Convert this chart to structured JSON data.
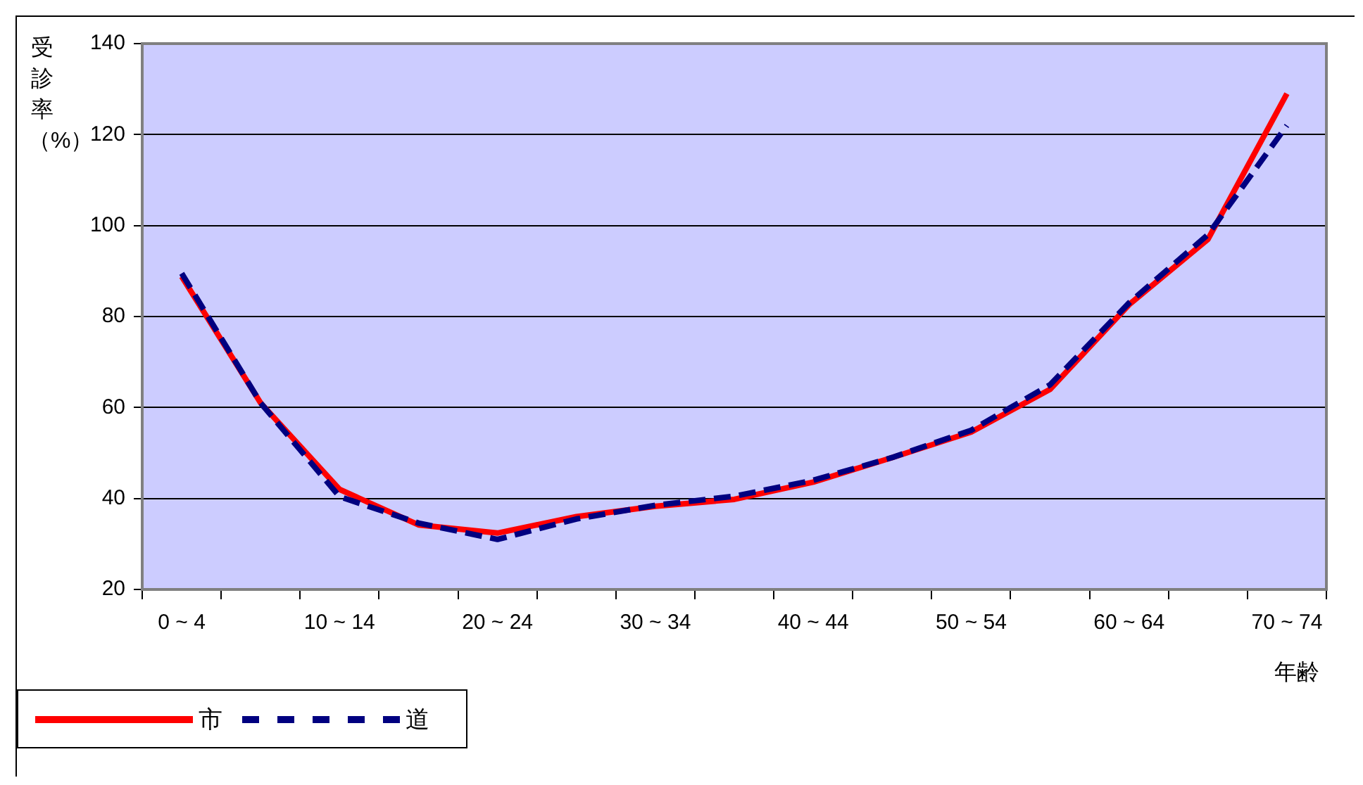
{
  "chart_data": {
    "type": "line",
    "xlabel": "年齢",
    "ylabel": "受診率（%）",
    "categories": [
      "0 ~ 4",
      null,
      "10 ~ 14",
      null,
      "20 ~ 24",
      null,
      "30 ~ 34",
      null,
      "40 ~ 44",
      null,
      "50 ~ 54",
      null,
      "60 ~ 64",
      null,
      "70 ~ 74"
    ],
    "series": [
      {
        "name": "市",
        "color": "#ff0000",
        "line_style": "solid",
        "values": [
          88.8,
          61,
          42,
          34.2,
          32.4,
          36,
          38.3,
          39.8,
          43.6,
          49,
          54.6,
          64,
          82.6,
          97,
          129
        ]
      },
      {
        "name": "道",
        "color": "#000080",
        "line_style": "dashed",
        "values": [
          89.5,
          61,
          40.4,
          34.6,
          31,
          35.5,
          38.5,
          40.5,
          44,
          49,
          55,
          65,
          83,
          98,
          122
        ]
      }
    ],
    "ylim": [
      20,
      140
    ],
    "yticks": [
      20,
      40,
      60,
      80,
      100,
      120,
      140
    ],
    "grid": "y",
    "legend": "bottom left",
    "marker": "none"
  }
}
